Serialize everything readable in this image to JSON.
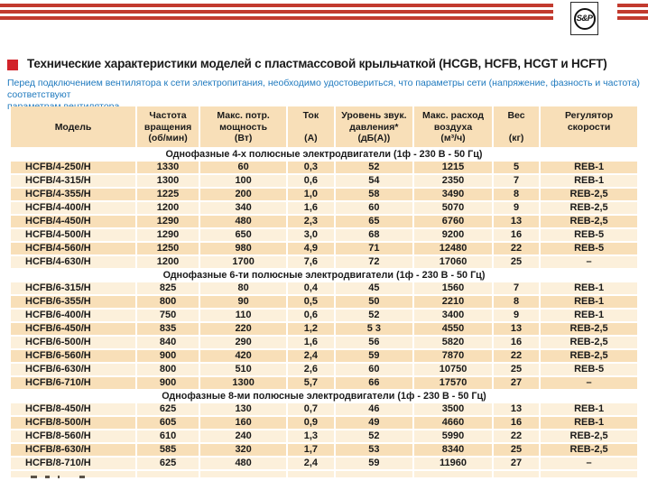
{
  "logo": {
    "text": "S&P"
  },
  "header": {
    "title": "Технические характеристики моделей с пластмассовой крыльчаткой (HCGB, HCFB, HCGT и HCFT)",
    "note_lines": [
      "Перед подключением вентилятора к сети электропитания, необходимо удостовериться, что параметры сети (напряжение, фазность и частота) соответствуют",
      "параметрам вентилятора."
    ]
  },
  "colors": {
    "stripe_red": "#c23a2e",
    "square_red": "#d2232a",
    "note_blue": "#1e79be",
    "peach": "#f8dfb8",
    "cream": "#fcf0db",
    "text": "#1a1a1a"
  },
  "table": {
    "columns": [
      {
        "id": "model",
        "lines": [
          "Модель"
        ]
      },
      {
        "id": "rpm",
        "lines": [
          "Частота",
          "вращения",
          "(об/мин)"
        ]
      },
      {
        "id": "power",
        "lines": [
          "Макс. потр.",
          "мощность",
          "(Вт)"
        ]
      },
      {
        "id": "current",
        "lines": [
          "Ток",
          "",
          "(А)"
        ]
      },
      {
        "id": "noise",
        "lines": [
          "Уровень звук.",
          "давления*",
          "(дБ(А))"
        ]
      },
      {
        "id": "airflow",
        "lines": [
          "Макс. расход",
          "воздуха",
          "(м³/ч)"
        ]
      },
      {
        "id": "weight",
        "lines": [
          "Вес",
          "",
          "(кг)"
        ]
      },
      {
        "id": "regulator",
        "lines": [
          "Регулятор",
          "скорости"
        ]
      }
    ],
    "sections": [
      {
        "header": "Однофазные 4-х полюсные электродвигатели (1ф - 230 В - 50 Гц)",
        "first_shade": "peach",
        "rows": [
          [
            "HCFB/4-250/H",
            "1330",
            "60",
            "0,3",
            "52",
            "1215",
            "5",
            "REB-1"
          ],
          [
            "HCFB/4-315/H",
            "1300",
            "100",
            "0,6",
            "54",
            "2350",
            "7",
            "REB-1"
          ],
          [
            "HCFB/4-355/H",
            "1225",
            "200",
            "1,0",
            "58",
            "3490",
            "8",
            "REB-2,5"
          ],
          [
            "HCFB/4-400/H",
            "1200",
            "340",
            "1,6",
            "60",
            "5070",
            "9",
            "REB-2,5"
          ],
          [
            "HCFB/4-450/H",
            "1290",
            "480",
            "2,3",
            "65",
            "6760",
            "13",
            "REB-2,5"
          ],
          [
            "HCFB/4-500/H",
            "1290",
            "650",
            "3,0",
            "68",
            "9200",
            "16",
            "REB-5"
          ],
          [
            "HCFB/4-560/H",
            "1250",
            "980",
            "4,9",
            "71",
            "12480",
            "22",
            "REB-5"
          ],
          [
            "HCFB/4-630/H",
            "1200",
            "1700",
            "7,6",
            "72",
            "17060",
            "25",
            "–"
          ]
        ]
      },
      {
        "header": "Однофазные 6-ти полюсные электродвигатели (1ф - 230 В - 50 Гц)",
        "first_shade": "cream",
        "rows": [
          [
            "HCFB/6-315/H",
            "825",
            "80",
            "0,4",
            "45",
            "1560",
            "7",
            "REB-1"
          ],
          [
            "HCFB/6-355/H",
            "800",
            "90",
            "0,5",
            "50",
            "2210",
            "8",
            "REB-1"
          ],
          [
            "HCFB/6-400/H",
            "750",
            "110",
            "0,6",
            "52",
            "3400",
            "9",
            "REB-1"
          ],
          [
            "HCFB/6-450/H",
            "835",
            "220",
            "1,2",
            "5 3",
            "4550",
            "13",
            "REB-2,5"
          ],
          [
            "HCFB/6-500/H",
            "840",
            "290",
            "1,6",
            "56",
            "5820",
            "16",
            "REB-2,5"
          ],
          [
            "HCFB/6-560/H",
            "900",
            "420",
            "2,4",
            "59",
            "7870",
            "22",
            "REB-2,5"
          ],
          [
            "HCFB/6-630/H",
            "800",
            "510",
            "2,6",
            "60",
            "10750",
            "25",
            "REB-5"
          ],
          [
            "HCFB/6-710/H",
            "900",
            "1300",
            "5,7",
            "66",
            "17570",
            "27",
            "–"
          ]
        ]
      },
      {
        "header": "Однофазные 8-ми полюсные электродвигатели (1ф - 230 В - 50 Гц)",
        "first_shade": "cream",
        "rows": [
          [
            "HCFB/8-450/H",
            "625",
            "130",
            "0,7",
            "46",
            "3500",
            "13",
            "REB-1"
          ],
          [
            "HCFB/8-500/H",
            "605",
            "160",
            "0,9",
            "49",
            "4660",
            "16",
            "REB-1"
          ],
          [
            "HCFB/8-560/H",
            "610",
            "240",
            "1,3",
            "52",
            "5990",
            "22",
            "REB-2,5"
          ],
          [
            "HCFB/8-630/H",
            "585",
            "320",
            "1,7",
            "53",
            "8340",
            "25",
            "REB-2,5"
          ],
          [
            "HCFB/8-710/H",
            "625",
            "480",
            "2,4",
            "59",
            "11960",
            "27",
            "–"
          ]
        ]
      }
    ],
    "clipped_partial_row": true
  }
}
